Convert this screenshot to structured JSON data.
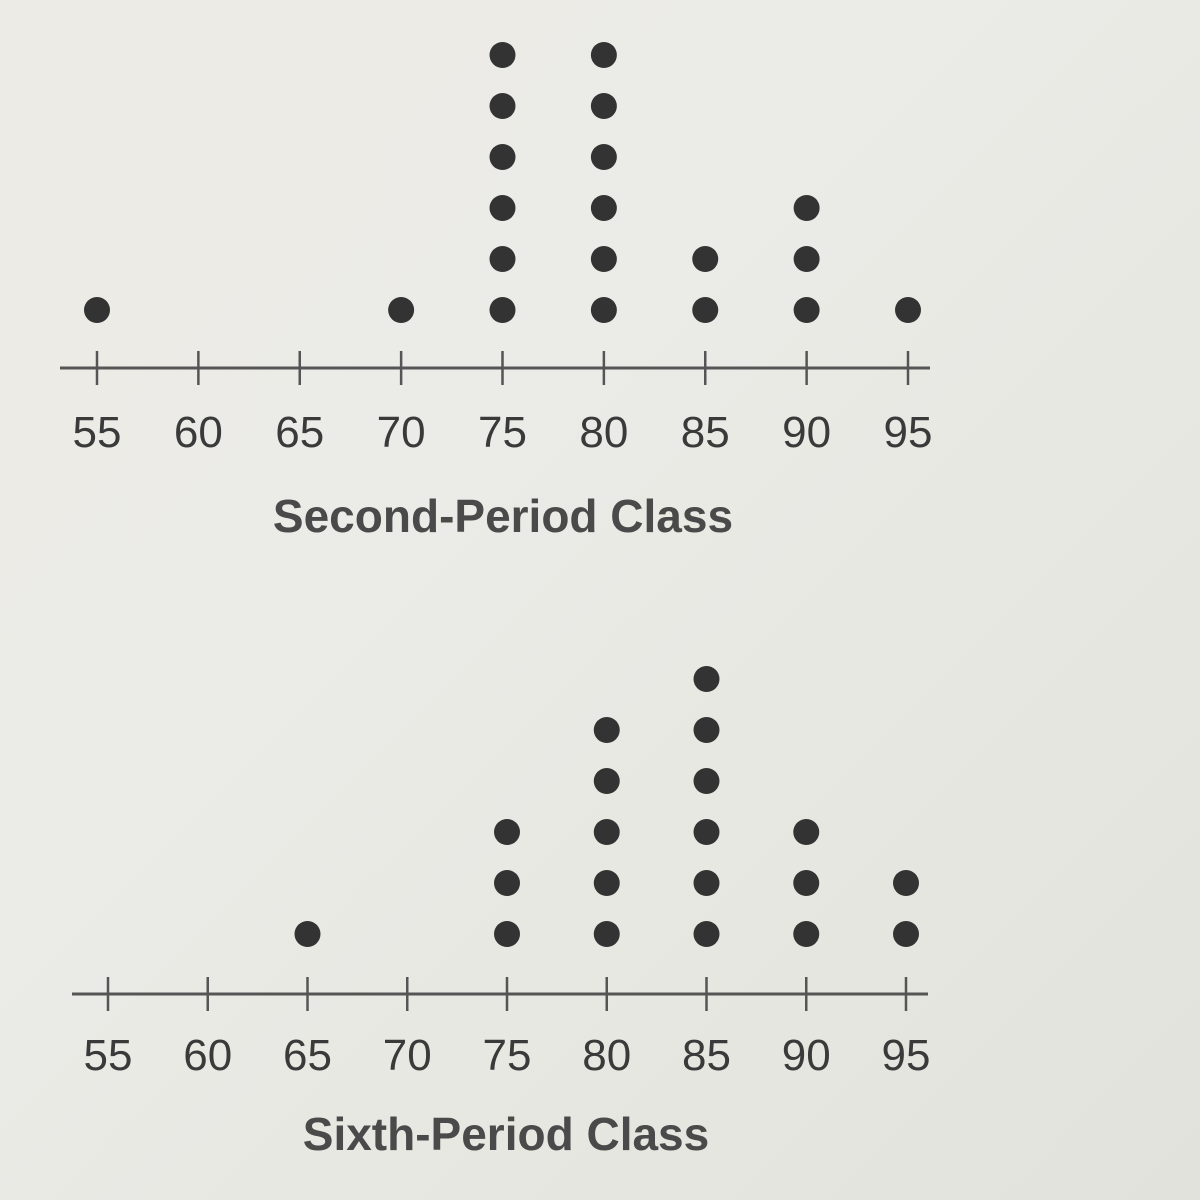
{
  "chart_data": [
    {
      "type": "scatter",
      "subtype": "dot-plot",
      "xlabel": "Second-Period Class",
      "ticks": [
        "55",
        "60",
        "65",
        "70",
        "75",
        "80",
        "85",
        "90",
        "95"
      ],
      "xlim": [
        55,
        95
      ],
      "x": [
        55,
        70,
        75,
        80,
        85,
        90,
        95
      ],
      "counts": [
        1,
        1,
        6,
        6,
        2,
        3,
        1
      ],
      "grid": false,
      "dot_color": "#333333",
      "axis_color": "#555555"
    },
    {
      "type": "scatter",
      "subtype": "dot-plot",
      "xlabel": "Sixth-Period Class",
      "ticks": [
        "55",
        "60",
        "65",
        "70",
        "75",
        "80",
        "85",
        "90",
        "95"
      ],
      "xlim": [
        55,
        95
      ],
      "x": [
        65,
        75,
        80,
        85,
        90,
        95
      ],
      "counts": [
        1,
        3,
        5,
        6,
        3,
        2
      ],
      "grid": false,
      "dot_color": "#333333",
      "axis_color": "#555555"
    }
  ]
}
